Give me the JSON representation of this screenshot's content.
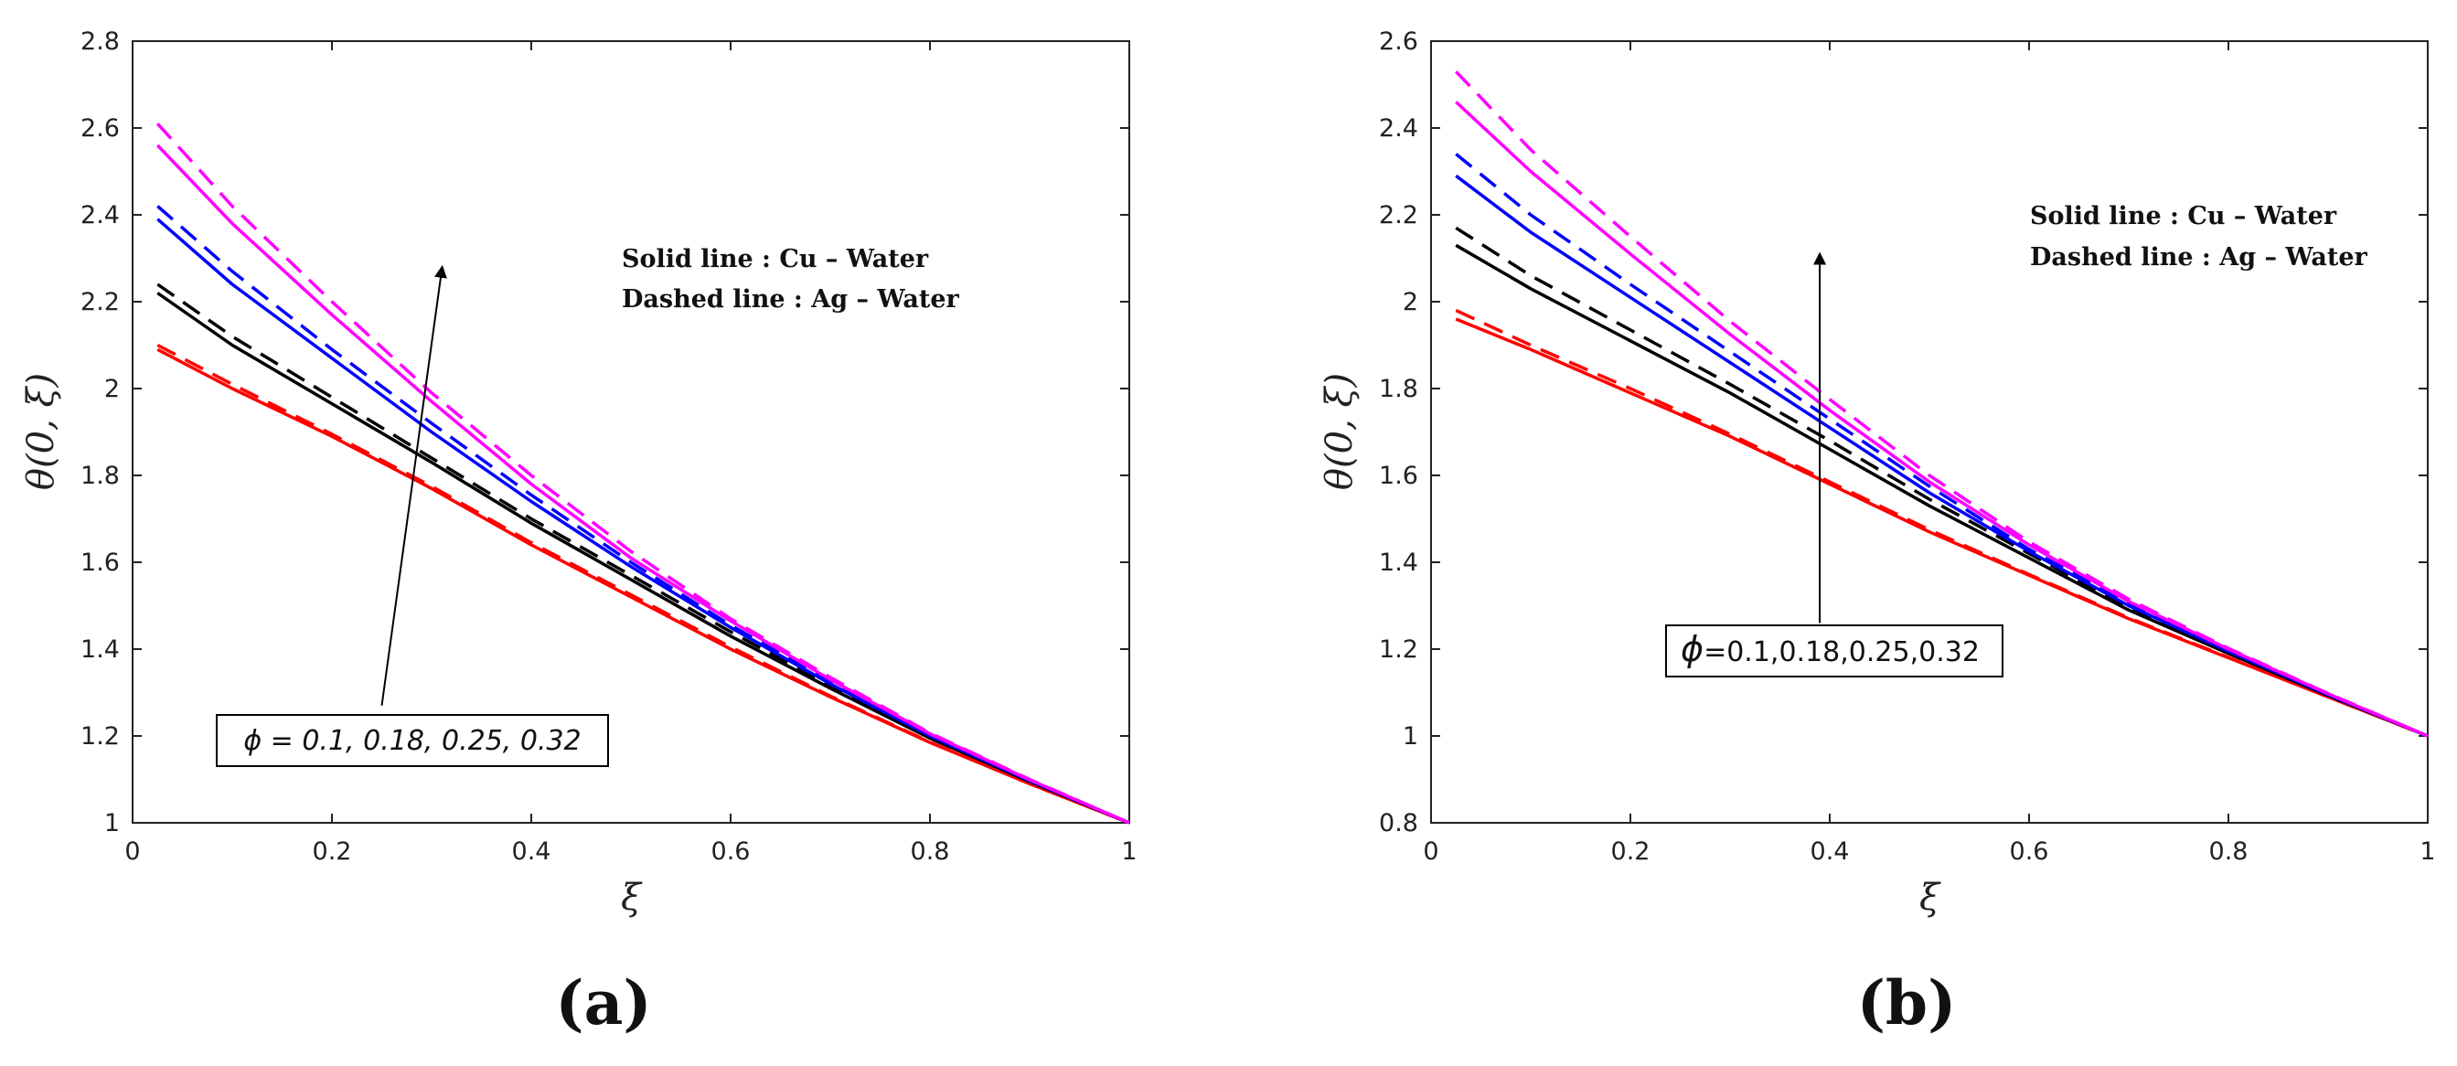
{
  "chart_data": [
    {
      "type": "line",
      "panel_label": "(a)",
      "xlabel": "ξ",
      "ylabel": "θ(0, ξ)",
      "xlim": [
        0,
        1
      ],
      "ylim": [
        1,
        2.8
      ],
      "xticks": [
        "0",
        "0.2",
        "0.4",
        "0.6",
        "0.8",
        "1"
      ],
      "yticks": [
        "1",
        "1.2",
        "1.4",
        "1.6",
        "1.8",
        "2",
        "2.2",
        "2.4",
        "2.6",
        "2.8"
      ],
      "legend": [
        "Solid line : Cu – Water",
        "Dashed line : Ag – Water"
      ],
      "annotation": "ϕ = 0.1, 0.18, 0.25, 0.32",
      "arrow": {
        "from": [
          0.25,
          1.27
        ],
        "to": [
          0.31,
          2.27
        ]
      },
      "x": [
        0.025,
        0.1,
        0.2,
        0.3,
        0.4,
        0.5,
        0.6,
        0.7,
        0.8,
        0.9,
        1.0
      ],
      "series": [
        {
          "name": "Cu-Water ϕ=0.1",
          "style": "solid",
          "color": "#ff0000",
          "values": [
            2.09,
            2.0,
            1.89,
            1.77,
            1.64,
            1.52,
            1.4,
            1.29,
            1.185,
            1.09,
            1.0
          ]
        },
        {
          "name": "Ag-Water ϕ=0.1",
          "style": "dashed",
          "color": "#ff0000",
          "values": [
            2.1,
            2.01,
            1.895,
            1.775,
            1.645,
            1.525,
            1.405,
            1.292,
            1.186,
            1.09,
            1.0
          ]
        },
        {
          "name": "Cu-Water ϕ=0.18",
          "style": "solid",
          "color": "#000000",
          "values": [
            2.22,
            2.1,
            1.965,
            1.83,
            1.69,
            1.56,
            1.43,
            1.31,
            1.195,
            1.095,
            1.0
          ]
        },
        {
          "name": "Ag-Water ϕ=0.18",
          "style": "dashed",
          "color": "#000000",
          "values": [
            2.24,
            2.12,
            1.98,
            1.84,
            1.7,
            1.57,
            1.44,
            1.315,
            1.198,
            1.096,
            1.0
          ]
        },
        {
          "name": "Cu-Water ϕ=0.25",
          "style": "solid",
          "color": "#0000ff",
          "values": [
            2.39,
            2.24,
            2.07,
            1.9,
            1.74,
            1.59,
            1.45,
            1.32,
            1.2,
            1.097,
            1.0
          ]
        },
        {
          "name": "Ag-Water ϕ=0.25",
          "style": "dashed",
          "color": "#0000ff",
          "values": [
            2.42,
            2.27,
            2.09,
            1.92,
            1.755,
            1.6,
            1.455,
            1.325,
            1.202,
            1.098,
            1.0
          ]
        },
        {
          "name": "Cu-Water ϕ=0.32",
          "style": "solid",
          "color": "#ff00ff",
          "values": [
            2.56,
            2.38,
            2.17,
            1.97,
            1.78,
            1.61,
            1.465,
            1.33,
            1.205,
            1.099,
            1.0
          ]
        },
        {
          "name": "Ag-Water ϕ=0.32",
          "style": "dashed",
          "color": "#ff00ff",
          "values": [
            2.61,
            2.42,
            2.2,
            1.99,
            1.8,
            1.625,
            1.47,
            1.335,
            1.207,
            1.1,
            1.0
          ]
        }
      ]
    },
    {
      "type": "line",
      "panel_label": "(b)",
      "xlabel": "ξ",
      "ylabel": "θ(0, ξ)",
      "xlim": [
        0,
        1
      ],
      "ylim": [
        0.8,
        2.6
      ],
      "xticks": [
        "0",
        "0.2",
        "0.4",
        "0.6",
        "0.8",
        "1"
      ],
      "yticks": [
        "0.8",
        "1",
        "1.2",
        "1.4",
        "1.6",
        "1.8",
        "2",
        "2.2",
        "2.4",
        "2.6"
      ],
      "legend": [
        "Solid line : Cu – Water",
        "Dashed line : Ag – Water"
      ],
      "annotation_symbol": "ϕ",
      "annotation": "=0.1,0.18,0.25,0.32",
      "arrow": {
        "from": [
          0.39,
          1.26
        ],
        "to": [
          0.39,
          2.1
        ]
      },
      "x": [
        0.025,
        0.1,
        0.2,
        0.3,
        0.4,
        0.5,
        0.6,
        0.7,
        0.8,
        0.9,
        1.0
      ],
      "series": [
        {
          "name": "Cu-Water ϕ=0.1",
          "style": "solid",
          "color": "#ff0000",
          "values": [
            1.96,
            1.89,
            1.79,
            1.69,
            1.58,
            1.47,
            1.37,
            1.27,
            1.18,
            1.09,
            1.0
          ]
        },
        {
          "name": "Ag-Water ϕ=0.1",
          "style": "dashed",
          "color": "#ff0000",
          "values": [
            1.98,
            1.9,
            1.8,
            1.695,
            1.585,
            1.475,
            1.372,
            1.272,
            1.181,
            1.09,
            1.0
          ]
        },
        {
          "name": "Cu-Water ϕ=0.18",
          "style": "solid",
          "color": "#000000",
          "values": [
            2.13,
            2.03,
            1.91,
            1.79,
            1.66,
            1.53,
            1.41,
            1.29,
            1.19,
            1.093,
            1.0
          ]
        },
        {
          "name": "Ag-Water ϕ=0.18",
          "style": "dashed",
          "color": "#000000",
          "values": [
            2.17,
            2.06,
            1.935,
            1.81,
            1.68,
            1.545,
            1.42,
            1.295,
            1.192,
            1.094,
            1.0
          ]
        },
        {
          "name": "Cu-Water ϕ=0.25",
          "style": "solid",
          "color": "#0000ff",
          "values": [
            2.29,
            2.16,
            2.01,
            1.86,
            1.71,
            1.56,
            1.425,
            1.3,
            1.195,
            1.095,
            1.0
          ]
        },
        {
          "name": "Ag-Water ϕ=0.25",
          "style": "dashed",
          "color": "#0000ff",
          "values": [
            2.34,
            2.2,
            2.04,
            1.885,
            1.73,
            1.575,
            1.43,
            1.305,
            1.197,
            1.096,
            1.0
          ]
        },
        {
          "name": "Cu-Water ϕ=0.32",
          "style": "solid",
          "color": "#ff00ff",
          "values": [
            2.46,
            2.3,
            2.11,
            1.925,
            1.75,
            1.585,
            1.44,
            1.31,
            1.2,
            1.097,
            1.0
          ]
        },
        {
          "name": "Ag-Water ϕ=0.32",
          "style": "dashed",
          "color": "#ff00ff",
          "values": [
            2.53,
            2.35,
            2.15,
            1.955,
            1.775,
            1.6,
            1.447,
            1.315,
            1.202,
            1.098,
            1.0
          ]
        }
      ]
    }
  ]
}
